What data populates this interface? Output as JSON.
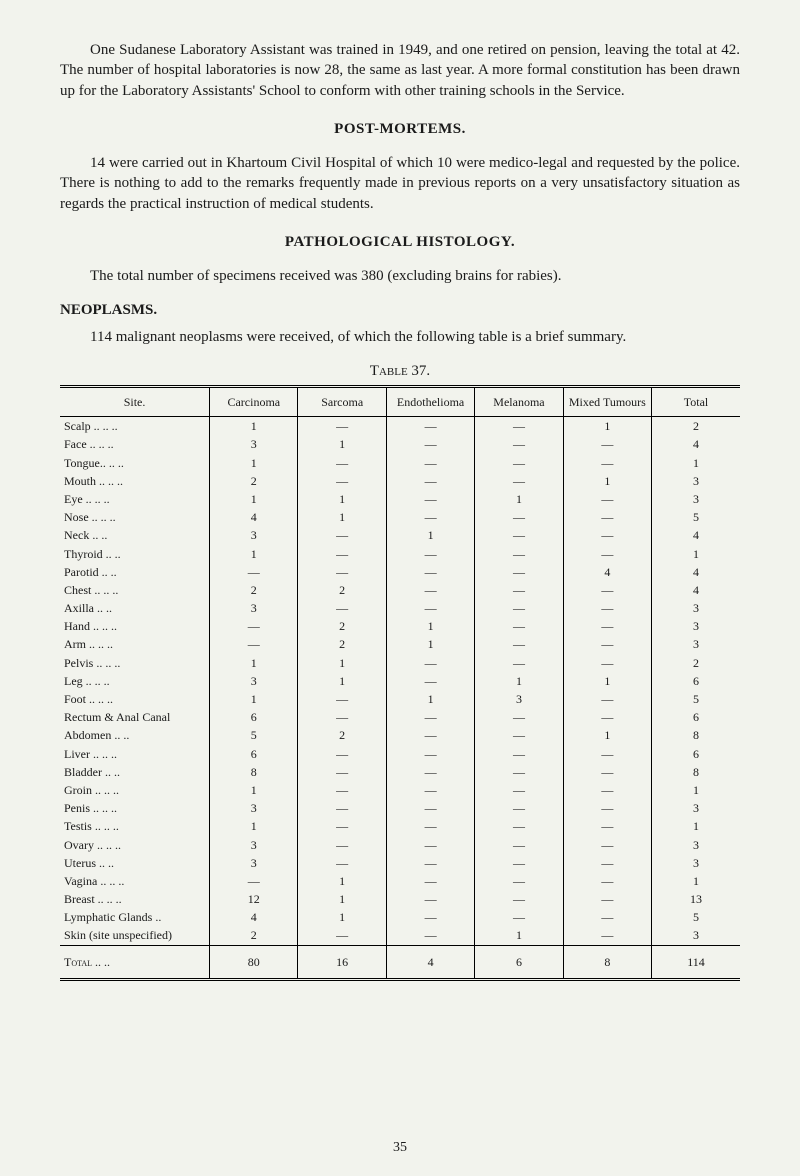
{
  "paragraphs": {
    "intro": "One Sudanese Laboratory Assistant was trained in 1949, and one retired on pension, leaving the total at 42. The number of hospital laboratories is now 28, the same as last year. A more formal constitution has been drawn up for the Laboratory Assistants' School to conform with other training schools in the Service.",
    "postmortems": "14 were carried out in Khartoum Civil Hospital of which 10 were medico-legal and requested by the police. There is nothing to add to the remarks frequently made in previous reports on a very unsatisfactory situation as regards the practical instruction of medical students.",
    "histology": "The total number of specimens received was 380 (excluding brains for rabies).",
    "neoplasms": "114 malignant neoplasms were received, of which the following table is a brief summary."
  },
  "headings": {
    "postmortems": "POST-MORTEMS.",
    "histology": "PATHOLOGICAL HISTOLOGY.",
    "neoplasms": "NEOPLASMS.",
    "table_label": "Table 37."
  },
  "table": {
    "columns": [
      "Site.",
      "Carcinoma",
      "Sarcoma",
      "Endothelioma",
      "Melanoma",
      "Mixed Tumours",
      "Total"
    ],
    "rows": [
      [
        "Scalp ..  ..  ..",
        "1",
        "—",
        "—",
        "—",
        "1",
        "2"
      ],
      [
        "Face  ..  ..  ..",
        "3",
        "1",
        "—",
        "—",
        "—",
        "4"
      ],
      [
        "Tongue..  ..  ..",
        "1",
        "—",
        "—",
        "—",
        "—",
        "1"
      ],
      [
        "Mouth ..  ..  ..",
        "2",
        "—",
        "—",
        "—",
        "1",
        "3"
      ],
      [
        "Eye   ..  ..  ..",
        "1",
        "1",
        "—",
        "1",
        "—",
        "3"
      ],
      [
        "Nose  ..  ..  ..",
        "4",
        "1",
        "—",
        "—",
        "—",
        "5"
      ],
      [
        "Neck      ..  ..",
        "3",
        "—",
        "1",
        "—",
        "—",
        "4"
      ],
      [
        "Thyroid   ..  ..",
        "1",
        "—",
        "—",
        "—",
        "—",
        "1"
      ],
      [
        "Parotid   ..  ..",
        "—",
        "—",
        "—",
        "—",
        "4",
        "4"
      ],
      [
        "Chest ..  ..  ..",
        "2",
        "2",
        "—",
        "—",
        "—",
        "4"
      ],
      [
        "Axilla    ..  ..",
        "3",
        "—",
        "—",
        "—",
        "—",
        "3"
      ],
      [
        "Hand  ..  ..  ..",
        "—",
        "2",
        "1",
        "—",
        "—",
        "3"
      ],
      [
        "Arm   ..  ..  ..",
        "—",
        "2",
        "1",
        "—",
        "—",
        "3"
      ],
      [
        "Pelvis ..  ..  ..",
        "1",
        "1",
        "—",
        "—",
        "—",
        "2"
      ],
      [
        "Leg   ..  ..  ..",
        "3",
        "1",
        "—",
        "1",
        "1",
        "6"
      ],
      [
        "Foot  ..  ..  ..",
        "1",
        "—",
        "1",
        "3",
        "—",
        "5"
      ],
      [
        "Rectum & Anal Canal",
        "6",
        "—",
        "—",
        "—",
        "—",
        "6"
      ],
      [
        "Abdomen   ..  ..",
        "5",
        "2",
        "—",
        "—",
        "1",
        "8"
      ],
      [
        "Liver ..  ..  ..",
        "6",
        "—",
        "—",
        "—",
        "—",
        "6"
      ],
      [
        "Bladder   ..  ..",
        "8",
        "—",
        "—",
        "—",
        "—",
        "8"
      ],
      [
        "Groin ..  ..  ..",
        "1",
        "—",
        "—",
        "—",
        "—",
        "1"
      ],
      [
        "Penis ..  ..  ..",
        "3",
        "—",
        "—",
        "—",
        "—",
        "3"
      ],
      [
        "Testis ..  ..  ..",
        "1",
        "—",
        "—",
        "—",
        "—",
        "1"
      ],
      [
        "Ovary ..  ..  ..",
        "3",
        "—",
        "—",
        "—",
        "—",
        "3"
      ],
      [
        "Uterus    ..  ..",
        "3",
        "—",
        "—",
        "—",
        "—",
        "3"
      ],
      [
        "Vagina ..  ..  ..",
        "—",
        "1",
        "—",
        "—",
        "—",
        "1"
      ],
      [
        "Breast ..  ..  ..",
        "12",
        "1",
        "—",
        "—",
        "—",
        "13"
      ],
      [
        "Lymphatic Glands ..",
        "4",
        "1",
        "—",
        "—",
        "—",
        "5"
      ],
      [
        "Skin (site unspecified)",
        "2",
        "—",
        "—",
        "1",
        "—",
        "3"
      ]
    ],
    "total_row": [
      "Total  ..  ..",
      "80",
      "16",
      "4",
      "6",
      "8",
      "114"
    ]
  },
  "page_number": "35"
}
